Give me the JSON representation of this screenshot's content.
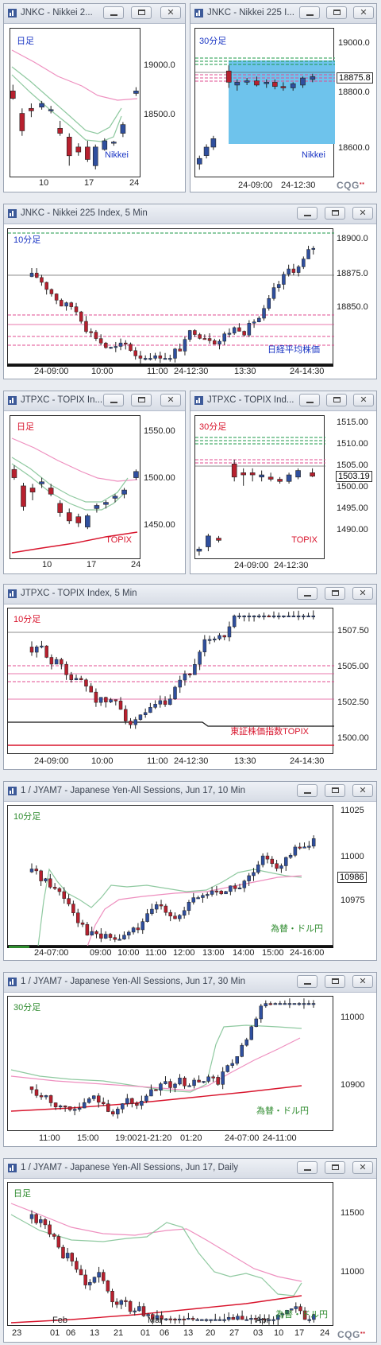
{
  "colors": {
    "bull_fill": "#2f4f9e",
    "bear_fill": "#b7202e",
    "ma_pink": "#ee8fbf",
    "ma_green": "#8fc9a0",
    "ma_red": "#d8142c",
    "green_text": "#2e8b2e",
    "red_text": "#d8142c",
    "blue_text": "#1a35c4",
    "selection_fill": "#6ec3ec"
  },
  "brand": "CQG",
  "windows": [
    {
      "id": "w1",
      "title": "JNKC - Nikkei 2...",
      "timeframe": "日足",
      "timeframe_color": "blue",
      "source": "Nikkei",
      "source_color": "blue",
      "y_labels": [
        "19000.0",
        "18500.0"
      ],
      "x_labels": [
        "10",
        "17",
        "24"
      ],
      "ma_lines": [
        {
          "color": "pink",
          "points": [
            [
              0,
              55
            ],
            [
              30,
              25
            ],
            [
              60,
              50
            ],
            [
              90,
              75
            ],
            [
              110,
              110
            ]
          ]
        },
        {
          "color": "green",
          "points": [
            [
              0,
              15
            ],
            [
              30,
              10
            ],
            [
              50,
              25
            ],
            [
              75,
              45
            ],
            [
              100,
              80
            ]
          ]
        }
      ],
      "candles": [
        {
          "pos": 0.02,
          "o": 18900,
          "h": 18950,
          "l": 18830,
          "c": 18840
        },
        {
          "pos": 0.09,
          "o": 18720,
          "h": 18760,
          "l": 18540,
          "c": 18580
        },
        {
          "pos": 0.16,
          "o": 18760,
          "h": 18800,
          "l": 18690,
          "c": 18740
        },
        {
          "pos": 0.24,
          "o": 18770,
          "h": 18820,
          "l": 18750,
          "c": 18800
        },
        {
          "pos": 0.31,
          "o": 18740,
          "h": 18780,
          "l": 18720,
          "c": 18750
        },
        {
          "pos": 0.38,
          "o": 18600,
          "h": 18660,
          "l": 18540,
          "c": 18560
        },
        {
          "pos": 0.45,
          "o": 18530,
          "h": 18560,
          "l": 18300,
          "c": 18380
        },
        {
          "pos": 0.52,
          "o": 18450,
          "h": 18480,
          "l": 18380,
          "c": 18410
        },
        {
          "pos": 0.59,
          "o": 18450,
          "h": 18500,
          "l": 18330,
          "c": 18350
        },
        {
          "pos": 0.65,
          "o": 18300,
          "h": 18470,
          "l": 18270,
          "c": 18450
        },
        {
          "pos": 0.72,
          "o": 18430,
          "h": 18520,
          "l": 18420,
          "c": 18500
        },
        {
          "pos": 0.79,
          "o": 18480,
          "h": 18500,
          "l": 18460,
          "c": 18490
        },
        {
          "pos": 0.86,
          "o": 18560,
          "h": 18650,
          "l": 18530,
          "c": 18630
        },
        {
          "pos": 0.96,
          "o": 18880,
          "h": 18930,
          "l": 18860,
          "c": 18900
        }
      ],
      "ymin": 18200,
      "ymax": 19400
    },
    {
      "id": "w2",
      "title": "JNKC - Nikkei 225 I...",
      "timeframe": "30分足",
      "timeframe_color": "blue",
      "source": "Nikkei",
      "source_color": "blue",
      "y_labels": [
        "19000.0",
        "18800.0",
        "18600.0"
      ],
      "price_box": "18875.8",
      "x_labels": [
        "24-09:00",
        "24-12:30"
      ],
      "candles": [
        {
          "pos": 0.03,
          "o": 18570,
          "h": 18600,
          "l": 18550,
          "c": 18590
        },
        {
          "pos": 0.08,
          "o": 18600,
          "h": 18640,
          "l": 18590,
          "c": 18630
        },
        {
          "pos": 0.13,
          "o": 18630,
          "h": 18670,
          "l": 18620,
          "c": 18660
        },
        {
          "pos": 0.24,
          "o": 18900,
          "h": 18920,
          "l": 18840,
          "c": 18860
        },
        {
          "pos": 0.3,
          "o": 18850,
          "h": 18870,
          "l": 18830,
          "c": 18860
        },
        {
          "pos": 0.37,
          "o": 18860,
          "h": 18875,
          "l": 18850,
          "c": 18865
        },
        {
          "pos": 0.44,
          "o": 18865,
          "h": 18880,
          "l": 18845,
          "c": 18850
        },
        {
          "pos": 0.51,
          "o": 18855,
          "h": 18870,
          "l": 18840,
          "c": 18860
        },
        {
          "pos": 0.57,
          "o": 18860,
          "h": 18870,
          "l": 18835,
          "c": 18845
        },
        {
          "pos": 0.63,
          "o": 18845,
          "h": 18860,
          "l": 18830,
          "c": 18840
        },
        {
          "pos": 0.7,
          "o": 18840,
          "h": 18860,
          "l": 18830,
          "c": 18855
        },
        {
          "pos": 0.77,
          "o": 18850,
          "h": 18880,
          "l": 18840,
          "c": 18875
        },
        {
          "pos": 0.84,
          "o": 18870,
          "h": 18890,
          "l": 18860,
          "c": 18880
        }
      ],
      "ymin": 18520,
      "ymax": 19050
    },
    {
      "id": "w3",
      "title": "JNKC - Nikkei 225 Index, 5 Min",
      "timeframe": "10分足",
      "timeframe_color": "blue",
      "source": "日経平均株価",
      "source_color": "blue",
      "y_labels": [
        "18900.0",
        "18875.0",
        "18850.0"
      ],
      "x_labels": [
        "24-09:00",
        "10:00",
        "11:00",
        "24-12:30",
        "13:30",
        "24-14:30"
      ],
      "candles": [],
      "ymin": 18830,
      "ymax": 18930
    },
    {
      "id": "w4",
      "title": "JTPXC - TOPIX In...",
      "timeframe": "日足",
      "timeframe_color": "red",
      "source": "TOPIX",
      "source_color": "red",
      "y_labels": [
        "1550.00",
        "1500.00",
        "1450.00"
      ],
      "x_labels": [
        "10",
        "17",
        "24"
      ],
      "candles": [
        {
          "pos": 0.03,
          "o": 1508,
          "h": 1512,
          "l": 1498,
          "c": 1500
        },
        {
          "pos": 0.1,
          "o": 1492,
          "h": 1495,
          "l": 1468,
          "c": 1472
        },
        {
          "pos": 0.17,
          "o": 1490,
          "h": 1494,
          "l": 1478,
          "c": 1486
        },
        {
          "pos": 0.24,
          "o": 1494,
          "h": 1500,
          "l": 1490,
          "c": 1496
        },
        {
          "pos": 0.31,
          "o": 1490,
          "h": 1494,
          "l": 1482,
          "c": 1484
        },
        {
          "pos": 0.38,
          "o": 1475,
          "h": 1478,
          "l": 1462,
          "c": 1466
        },
        {
          "pos": 0.45,
          "o": 1466,
          "h": 1470,
          "l": 1455,
          "c": 1458
        },
        {
          "pos": 0.52,
          "o": 1462,
          "h": 1465,
          "l": 1452,
          "c": 1456
        },
        {
          "pos": 0.59,
          "o": 1452,
          "h": 1465,
          "l": 1450,
          "c": 1463
        },
        {
          "pos": 0.66,
          "o": 1470,
          "h": 1475,
          "l": 1466,
          "c": 1473
        },
        {
          "pos": 0.73,
          "o": 1474,
          "h": 1478,
          "l": 1470,
          "c": 1476
        },
        {
          "pos": 0.8,
          "o": 1480,
          "h": 1484,
          "l": 1476,
          "c": 1482
        },
        {
          "pos": 0.87,
          "o": 1484,
          "h": 1490,
          "l": 1480,
          "c": 1488
        },
        {
          "pos": 0.96,
          "o": 1500,
          "h": 1508,
          "l": 1498,
          "c": 1506
        }
      ],
      "ymin": 1420,
      "ymax": 1560
    },
    {
      "id": "w5",
      "title": "JTPXC - TOPIX Ind...",
      "timeframe": "30分足",
      "timeframe_color": "red",
      "source": "TOPIX",
      "source_color": "red",
      "y_labels": [
        "1515.00",
        "1510.00",
        "1505.00",
        "1500.00",
        "1495.00",
        "1490.00"
      ],
      "price_box": "1503.19",
      "x_labels": [
        "24-09:00",
        "24-12:30"
      ],
      "candles": [
        {
          "pos": 0.03,
          "o": 1486,
          "h": 1487,
          "l": 1485,
          "c": 1486.5
        },
        {
          "pos": 0.1,
          "o": 1487,
          "h": 1490,
          "l": 1486,
          "c": 1489.5
        },
        {
          "pos": 0.18,
          "o": 1489,
          "h": 1489.5,
          "l": 1488,
          "c": 1488.5
        },
        {
          "pos": 0.3,
          "o": 1506,
          "h": 1507,
          "l": 1502,
          "c": 1503
        },
        {
          "pos": 0.37,
          "o": 1504,
          "h": 1505,
          "l": 1501,
          "c": 1503.5
        },
        {
          "pos": 0.44,
          "o": 1504,
          "h": 1505,
          "l": 1502,
          "c": 1503.5
        },
        {
          "pos": 0.51,
          "o": 1503,
          "h": 1504.5,
          "l": 1502,
          "c": 1503.5
        },
        {
          "pos": 0.58,
          "o": 1503,
          "h": 1504,
          "l": 1502,
          "c": 1502.5
        },
        {
          "pos": 0.65,
          "o": 1502.5,
          "h": 1503,
          "l": 1501.5,
          "c": 1502
        },
        {
          "pos": 0.72,
          "o": 1502,
          "h": 1504,
          "l": 1501.5,
          "c": 1503.5
        },
        {
          "pos": 0.79,
          "o": 1503,
          "h": 1505,
          "l": 1502.5,
          "c": 1504.5
        },
        {
          "pos": 0.9,
          "o": 1504,
          "h": 1505,
          "l": 1503,
          "c": 1503.2
        }
      ],
      "ymin": 1484,
      "ymax": 1517
    },
    {
      "id": "w6",
      "title": "JTPXC - TOPIX Index, 5 Min",
      "timeframe": "10分足",
      "timeframe_color": "red",
      "source": "東証株価指数TOPIX",
      "source_color": "red",
      "y_labels": [
        "1507.50",
        "1505.00",
        "1502.50",
        "1500.00"
      ],
      "x_labels": [
        "24-09:00",
        "10:00",
        "11:00",
        "24-12:30",
        "13:30",
        "24-14:30"
      ],
      "candles": [],
      "ymin": 1499,
      "ymax": 1508.5
    },
    {
      "id": "w7",
      "title": "1 / JYAM7 - Japanese Yen-All Sessions, Jun 17, 10 Min",
      "timeframe": "10分足",
      "timeframe_color": "green",
      "source": "為替・ドル円",
      "source_color": "green",
      "y_labels": [
        "11025",
        "11000",
        "10975"
      ],
      "price_box": "10986",
      "x_labels": [
        "24-07:00",
        "09:00",
        "10:00",
        "11:00",
        "12:00",
        "13:00",
        "14:00",
        "15:00",
        "24-16:00"
      ],
      "candles": [],
      "ymin": 10950,
      "ymax": 11035
    },
    {
      "id": "w8",
      "title": "1 / JYAM7 - Japanese Yen-All Sessions, Jun 17, 30 Min",
      "timeframe": "30分足",
      "timeframe_color": "green",
      "source": "為替・ドル円",
      "source_color": "green",
      "y_labels": [
        "11000",
        "10900"
      ],
      "x_labels": [
        "11:00",
        "15:00",
        "19:00",
        "21-21:20",
        "01:20",
        "24-07:00",
        "24-11:00"
      ],
      "candles": [],
      "ymin": 10830,
      "ymax": 11040
    },
    {
      "id": "w9",
      "title": "1 / JYAM7 - Japanese Yen-All Sessions, Jun 17, Daily",
      "timeframe": "日足",
      "timeframe_color": "green",
      "source": "為替・ドル円",
      "source_color": "green",
      "y_labels": [
        "11500",
        "11000"
      ],
      "x_labels": [
        "23",
        "01",
        "06",
        "13",
        "21",
        "01",
        "06",
        "13",
        "20",
        "27",
        "03",
        "10",
        "17",
        "24"
      ],
      "month_labels": [
        "Feb",
        "Mar",
        "Apr"
      ],
      "candles": [],
      "ymin": 10700,
      "ymax": 11700
    }
  ]
}
